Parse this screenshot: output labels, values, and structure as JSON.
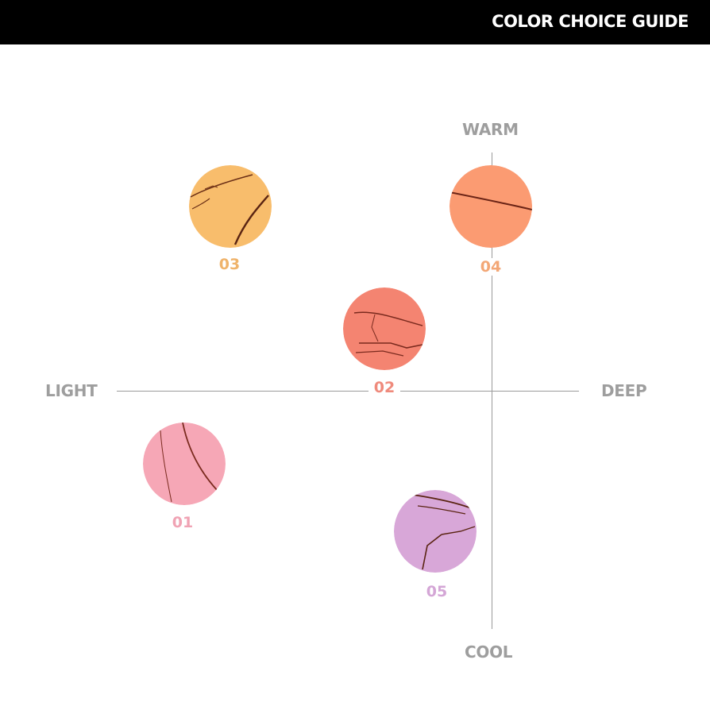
{
  "header": {
    "title": "COLOR CHOICE GUIDE"
  },
  "axes": {
    "top": "WARM",
    "bottom": "COOL",
    "left": "LIGHT",
    "right": "DEEP"
  },
  "shades": [
    {
      "number": "03",
      "color": "#f8bd6c",
      "label_color": "#efb36b"
    },
    {
      "number": "04",
      "color": "#fb9b72",
      "label_color": "#f3a776"
    },
    {
      "number": "02",
      "color": "#f48471",
      "label_color": "#ef8a7c"
    },
    {
      "number": "01",
      "color": "#f6a7b6",
      "label_color": "#f0a3b4"
    },
    {
      "number": "05",
      "color": "#d8a7d8",
      "label_color": "#d4a6d6"
    }
  ]
}
